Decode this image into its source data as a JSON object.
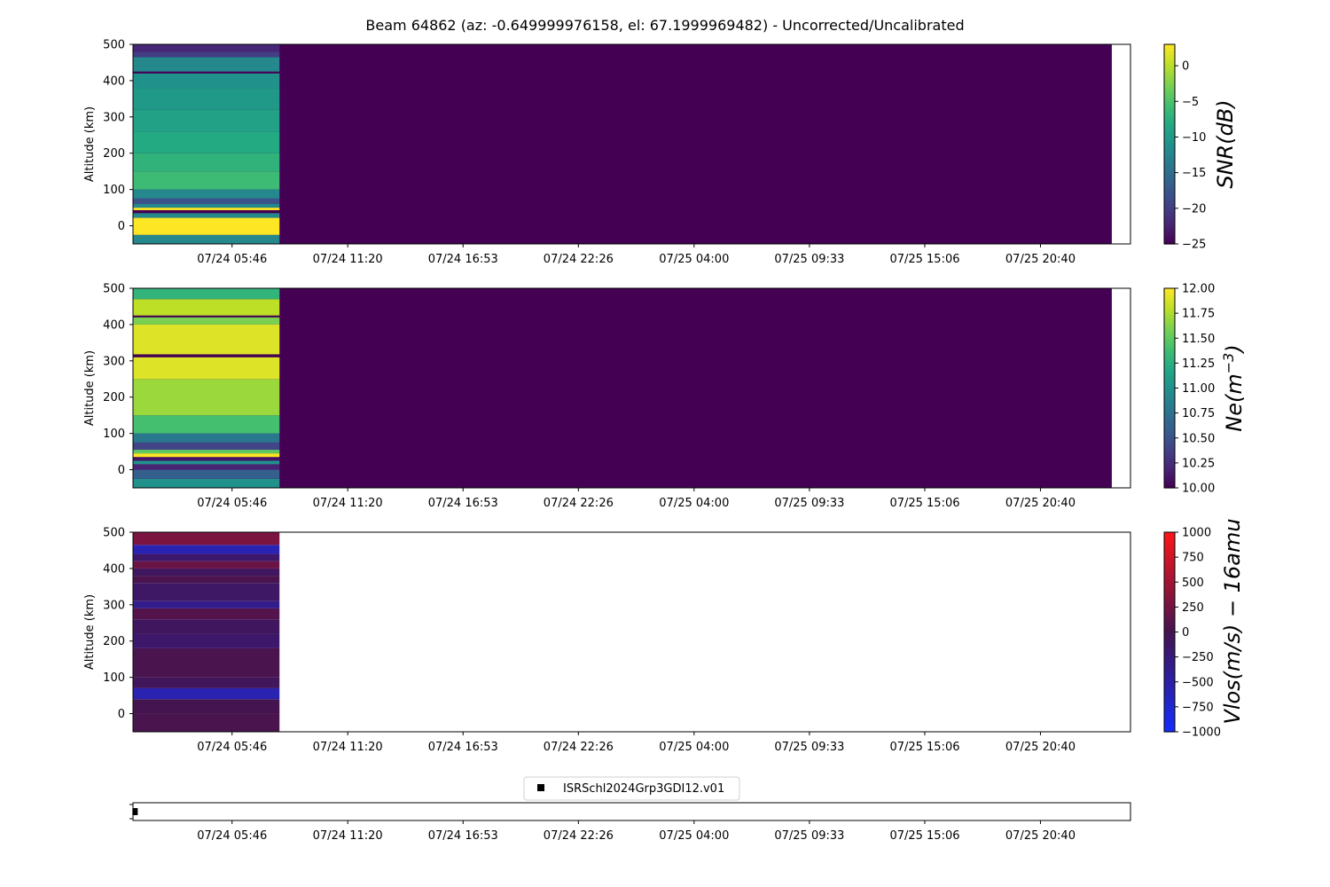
{
  "figure": {
    "title": "Beam 64862 (az: -0.649999976158, el: 67.1999969482) - Uncorrected/Uncalibrated"
  },
  "time_axis": {
    "tick_labels": [
      "07/24 05:46",
      "07/24 11:20",
      "07/24 16:53",
      "07/24 22:26",
      "07/25 04:00",
      "07/25 09:33",
      "07/25 15:06",
      "07/25 20:40"
    ],
    "tick_hours": [
      5.767,
      11.333,
      16.883,
      22.433,
      28.0,
      33.55,
      39.1,
      44.667
    ],
    "xlim_hours": [
      1.0,
      49.0
    ],
    "data_span_hours": [
      1.0,
      48.1
    ],
    "measured_span_hours": [
      1.0,
      8.05
    ]
  },
  "chart_data": [
    {
      "type": "heatmap",
      "name": "snr",
      "ylabel": "Altitude (km)",
      "ylim": [
        -50,
        500
      ],
      "yticks": [
        0,
        100,
        200,
        300,
        400,
        500
      ],
      "colorbar": {
        "label": "SNR(dB)",
        "range": [
          -25,
          3
        ],
        "ticks": [
          0,
          -5,
          -10,
          -15,
          -20,
          -25
        ],
        "colormap": "viridis"
      },
      "fill_value": -25,
      "bands": [
        {
          "alt": [
            -50,
            -25
          ],
          "value": -12
        },
        {
          "alt": [
            -25,
            22
          ],
          "value": 3
        },
        {
          "alt": [
            22,
            35
          ],
          "value": -12
        },
        {
          "alt": [
            35,
            43
          ],
          "value": -25
        },
        {
          "alt": [
            43,
            50
          ],
          "value": 3
        },
        {
          "alt": [
            50,
            60
          ],
          "value": -12
        },
        {
          "alt": [
            60,
            75
          ],
          "value": -18
        },
        {
          "alt": [
            75,
            100
          ],
          "value": -12
        },
        {
          "alt": [
            100,
            150
          ],
          "value": -6
        },
        {
          "alt": [
            150,
            200
          ],
          "value": -7
        },
        {
          "alt": [
            200,
            260
          ],
          "value": -8
        },
        {
          "alt": [
            260,
            320
          ],
          "value": -9
        },
        {
          "alt": [
            320,
            380
          ],
          "value": -10
        },
        {
          "alt": [
            380,
            420
          ],
          "value": -11
        },
        {
          "alt": [
            420,
            425
          ],
          "value": -25
        },
        {
          "alt": [
            425,
            465
          ],
          "value": -12
        },
        {
          "alt": [
            465,
            480
          ],
          "value": -20
        },
        {
          "alt": [
            480,
            500
          ],
          "value": -22
        }
      ]
    },
    {
      "type": "heatmap",
      "name": "ne",
      "ylabel": "Altitude (km)",
      "ylim": [
        -50,
        500
      ],
      "yticks": [
        0,
        100,
        200,
        300,
        400,
        500
      ],
      "colorbar": {
        "label": "Ne(m-3)",
        "range": [
          10,
          12
        ],
        "ticks": [
          12.0,
          11.75,
          11.5,
          11.25,
          11.0,
          10.75,
          10.5,
          10.25,
          10.0
        ],
        "tick_labels": [
          "12.00",
          "11.75",
          "11.50",
          "11.25",
          "11.00",
          "10.75",
          "10.50",
          "10.25",
          "10.00"
        ],
        "colormap": "viridis"
      },
      "fill_value": 10,
      "bands": [
        {
          "alt": [
            -50,
            -25
          ],
          "value": 11.0
        },
        {
          "alt": [
            -25,
            0
          ],
          "value": 10.6
        },
        {
          "alt": [
            0,
            15
          ],
          "value": 10.2
        },
        {
          "alt": [
            15,
            25
          ],
          "value": 11.0
        },
        {
          "alt": [
            25,
            35
          ],
          "value": 10.1
        },
        {
          "alt": [
            35,
            45
          ],
          "value": 12.0
        },
        {
          "alt": [
            45,
            55
          ],
          "value": 11.5
        },
        {
          "alt": [
            55,
            75
          ],
          "value": 10.4
        },
        {
          "alt": [
            75,
            100
          ],
          "value": 10.8
        },
        {
          "alt": [
            100,
            150
          ],
          "value": 11.4
        },
        {
          "alt": [
            150,
            250
          ],
          "value": 11.7
        },
        {
          "alt": [
            250,
            310
          ],
          "value": 11.9
        },
        {
          "alt": [
            310,
            318
          ],
          "value": 10.0
        },
        {
          "alt": [
            318,
            400
          ],
          "value": 11.9
        },
        {
          "alt": [
            400,
            420
          ],
          "value": 11.6
        },
        {
          "alt": [
            420,
            425
          ],
          "value": 10.0
        },
        {
          "alt": [
            425,
            470
          ],
          "value": 11.8
        },
        {
          "alt": [
            470,
            500
          ],
          "value": 11.3
        }
      ]
    },
    {
      "type": "heatmap",
      "name": "vlos",
      "ylabel": "Altitude (km)",
      "ylim": [
        -50,
        500
      ],
      "yticks": [
        0,
        100,
        200,
        300,
        400,
        500
      ],
      "colorbar": {
        "label": "Vlos(m/s) - 16amu",
        "range": [
          -1000,
          1000
        ],
        "ticks": [
          1000,
          750,
          500,
          250,
          0,
          -250,
          -500,
          -750,
          -1000
        ],
        "colormap": "blue-red"
      },
      "fill_value": null,
      "bands": [
        {
          "alt": [
            -50,
            0
          ],
          "value": 30
        },
        {
          "alt": [
            0,
            40
          ],
          "value": 0
        },
        {
          "alt": [
            40,
            70
          ],
          "value": -550
        },
        {
          "alt": [
            70,
            100
          ],
          "value": -60
        },
        {
          "alt": [
            100,
            180
          ],
          "value": 30
        },
        {
          "alt": [
            180,
            220
          ],
          "value": -150
        },
        {
          "alt": [
            220,
            260
          ],
          "value": -80
        },
        {
          "alt": [
            260,
            290
          ],
          "value": 80
        },
        {
          "alt": [
            290,
            310
          ],
          "value": -350
        },
        {
          "alt": [
            310,
            360
          ],
          "value": -120
        },
        {
          "alt": [
            360,
            380
          ],
          "value": 30
        },
        {
          "alt": [
            380,
            400
          ],
          "value": -80
        },
        {
          "alt": [
            400,
            420
          ],
          "value": 200
        },
        {
          "alt": [
            420,
            440
          ],
          "value": -150
        },
        {
          "alt": [
            440,
            465
          ],
          "value": -550
        },
        {
          "alt": [
            465,
            500
          ],
          "value": 300
        }
      ]
    },
    {
      "type": "scatter",
      "name": "experiment-timeline",
      "legend": [
        "ISRSchl2024Grp3GDI12.v01"
      ],
      "legend_position": "top-center",
      "points": [
        {
          "x_hours": 1.1,
          "y": 0
        }
      ]
    }
  ]
}
